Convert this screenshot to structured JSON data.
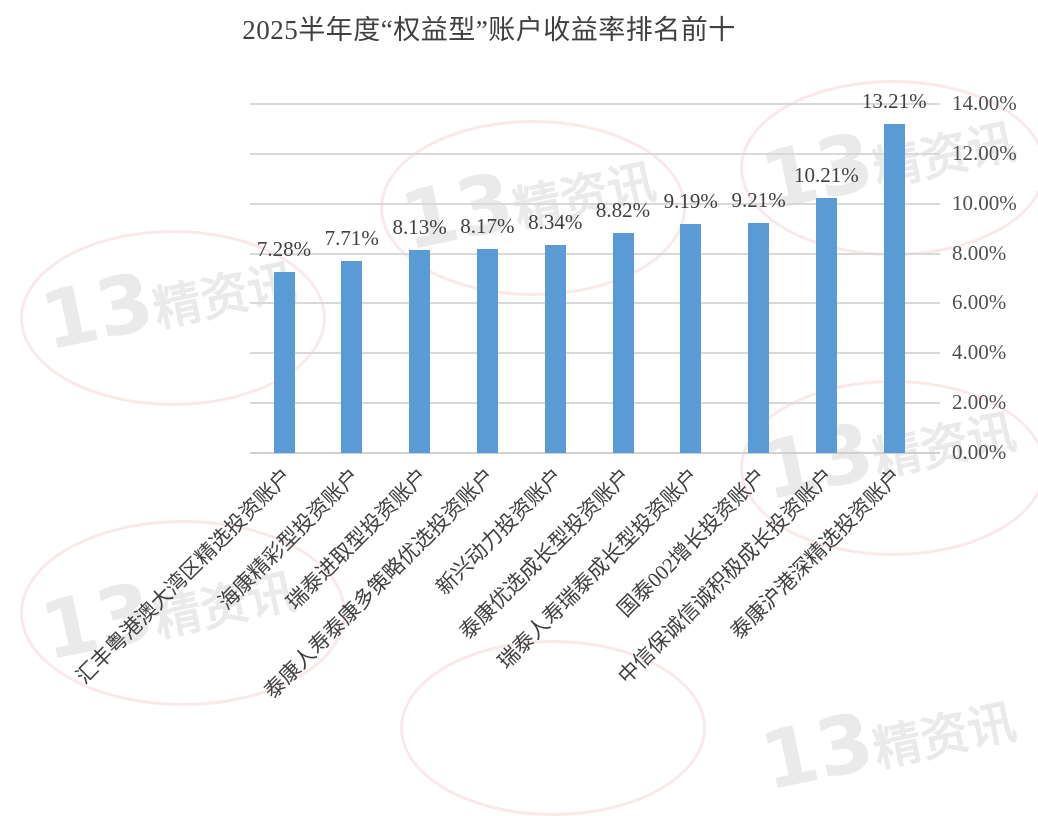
{
  "chart_data": {
    "type": "bar",
    "title": "2025半年度“权益型”账户收益率排名前十",
    "xlabel": "",
    "ylabel": "",
    "ylim": [
      0,
      14
    ],
    "yticks": [
      "0.00%",
      "2.00%",
      "4.00%",
      "6.00%",
      "8.00%",
      "10.00%",
      "12.00%",
      "14.00%"
    ],
    "y_axis_position": "right",
    "grid": true,
    "legend": null,
    "bar_color": "#5b9bd5",
    "categories": [
      "汇丰粤港澳大湾区精选投资账户",
      "海康精彩型投资账户",
      "瑞泰进取型投资账户",
      "泰康人寿泰康多策略优选投资账户",
      "新兴动力投资账户",
      "泰康优选成长型投资账户",
      "瑞泰人寿瑞泰成长型投资账户",
      "国泰002增长投资账户",
      "中信保诚信诚积极成长投资账户",
      "泰康沪港深精选投资账户"
    ],
    "values": [
      7.28,
      7.71,
      8.13,
      8.17,
      8.34,
      8.82,
      9.19,
      9.21,
      10.21,
      13.21
    ],
    "data_labels": [
      "7.28%",
      "7.71%",
      "8.13%",
      "8.17%",
      "8.34%",
      "8.82%",
      "9.19%",
      "9.21%",
      "10.21%",
      "13.21%"
    ]
  },
  "watermark": {
    "text_number": "13",
    "text_cn": "精资讯"
  }
}
